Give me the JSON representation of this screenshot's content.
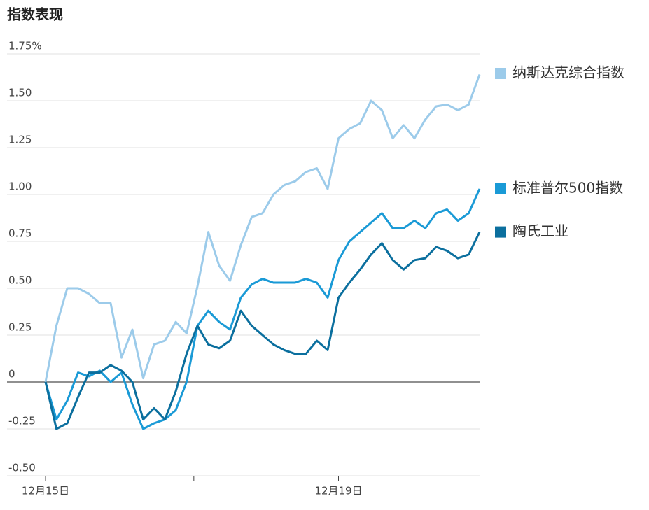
{
  "chart_data": {
    "type": "line",
    "title": "指数表现",
    "x": [
      0,
      3,
      6,
      9,
      12,
      15,
      18,
      21,
      24,
      27,
      30,
      33,
      36,
      39,
      42,
      45,
      48,
      51,
      54,
      57,
      60,
      63,
      66,
      69,
      72,
      75,
      78,
      81,
      84,
      87,
      90,
      93,
      96,
      99,
      102,
      105,
      108,
      111,
      114,
      117,
      120
    ],
    "xlim": [
      0,
      120
    ],
    "xticks": [
      {
        "value": 0,
        "label": "12月15日"
      },
      {
        "value": 41,
        "label": null
      },
      {
        "value": 81,
        "label": "12月19日"
      }
    ],
    "ylim": [
      -0.5,
      1.75
    ],
    "yticks": [
      {
        "value": -0.5,
        "label": "-0.50"
      },
      -0.25,
      0,
      0.25,
      {
        "value": 0.5,
        "label": "0.50"
      },
      0.75,
      {
        "value": 1,
        "label": "1.00"
      },
      1.25,
      {
        "value": 1.5,
        "label": "1.50"
      },
      {
        "value": 1.75,
        "label": "1.75%"
      }
    ],
    "grid": true,
    "legend": "right",
    "series": [
      {
        "name": "纳斯达克综合指数",
        "color": "#9ccbea",
        "values": [
          0,
          0.3,
          0.5,
          0.5,
          0.47,
          0.42,
          0.42,
          0.13,
          0.28,
          0.02,
          0.2,
          0.22,
          0.32,
          0.26,
          0.51,
          0.8,
          0.62,
          0.54,
          0.73,
          0.88,
          0.9,
          1.0,
          1.05,
          1.07,
          1.12,
          1.14,
          1.03,
          1.3,
          1.35,
          1.38,
          1.5,
          1.45,
          1.3,
          1.37,
          1.3,
          1.4,
          1.47,
          1.48,
          1.45,
          1.48,
          1.64
        ]
      },
      {
        "name": "标准普尔500指数",
        "color": "#1a9ad6",
        "values": [
          0,
          -0.2,
          -0.1,
          0.05,
          0.03,
          0.06,
          0.0,
          0.05,
          -0.12,
          -0.25,
          -0.22,
          -0.2,
          -0.15,
          0.0,
          0.3,
          0.38,
          0.32,
          0.28,
          0.45,
          0.52,
          0.55,
          0.53,
          0.53,
          0.53,
          0.55,
          0.53,
          0.45,
          0.65,
          0.75,
          0.8,
          0.85,
          0.9,
          0.82,
          0.82,
          0.86,
          0.82,
          0.9,
          0.92,
          0.86,
          0.9,
          1.03
        ]
      },
      {
        "name": "陶氏工业",
        "color": "#0b6f9e",
        "values": [
          0,
          -0.25,
          -0.22,
          -0.08,
          0.05,
          0.05,
          0.09,
          0.06,
          0.0,
          -0.2,
          -0.14,
          -0.2,
          -0.05,
          0.15,
          0.3,
          0.2,
          0.18,
          0.22,
          0.38,
          0.3,
          0.25,
          0.2,
          0.17,
          0.15,
          0.15,
          0.22,
          0.17,
          0.45,
          0.53,
          0.6,
          0.68,
          0.74,
          0.65,
          0.6,
          0.65,
          0.66,
          0.72,
          0.7,
          0.66,
          0.68,
          0.8
        ]
      }
    ]
  }
}
